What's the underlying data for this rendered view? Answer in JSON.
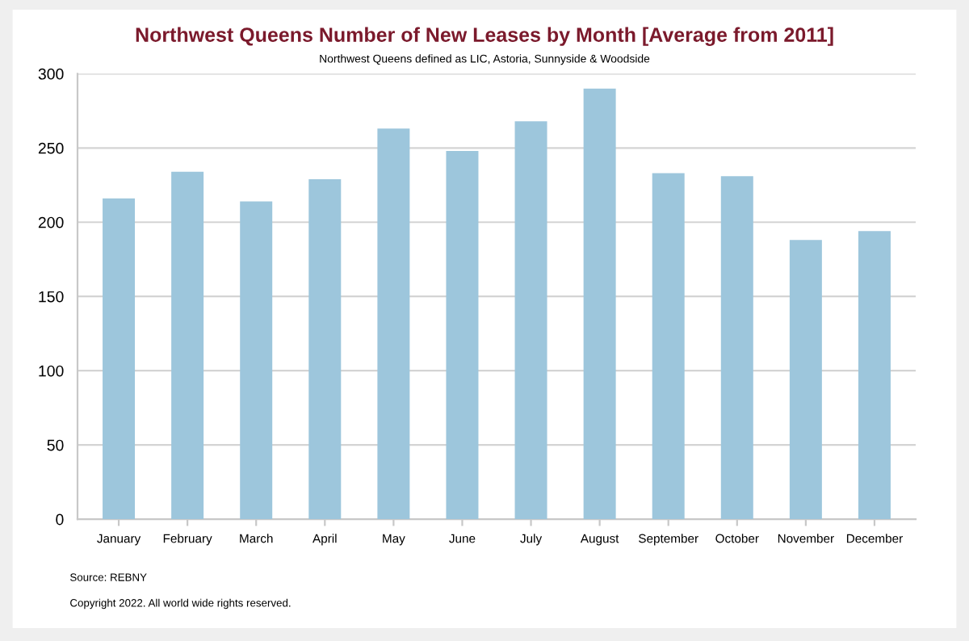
{
  "chart_data": {
    "type": "bar",
    "title": "Northwest Queens Number of New Leases by Month [Average from 2011]",
    "subtitle": "Northwest Queens defined as LIC, Astoria, Sunnyside & Woodside",
    "categories": [
      "January",
      "February",
      "March",
      "April",
      "May",
      "June",
      "July",
      "August",
      "September",
      "October",
      "November",
      "December"
    ],
    "values": [
      216,
      234,
      214,
      229,
      263,
      248,
      268,
      290,
      233,
      231,
      188,
      194
    ],
    "color": "#9dc6dc",
    "ylim": [
      0,
      300
    ],
    "yticks": [
      0,
      50,
      100,
      150,
      200,
      250,
      300
    ],
    "grid": "y",
    "annotations": [
      "Source: REBNY",
      "Copyright 2022. All world wide rights reserved."
    ]
  }
}
